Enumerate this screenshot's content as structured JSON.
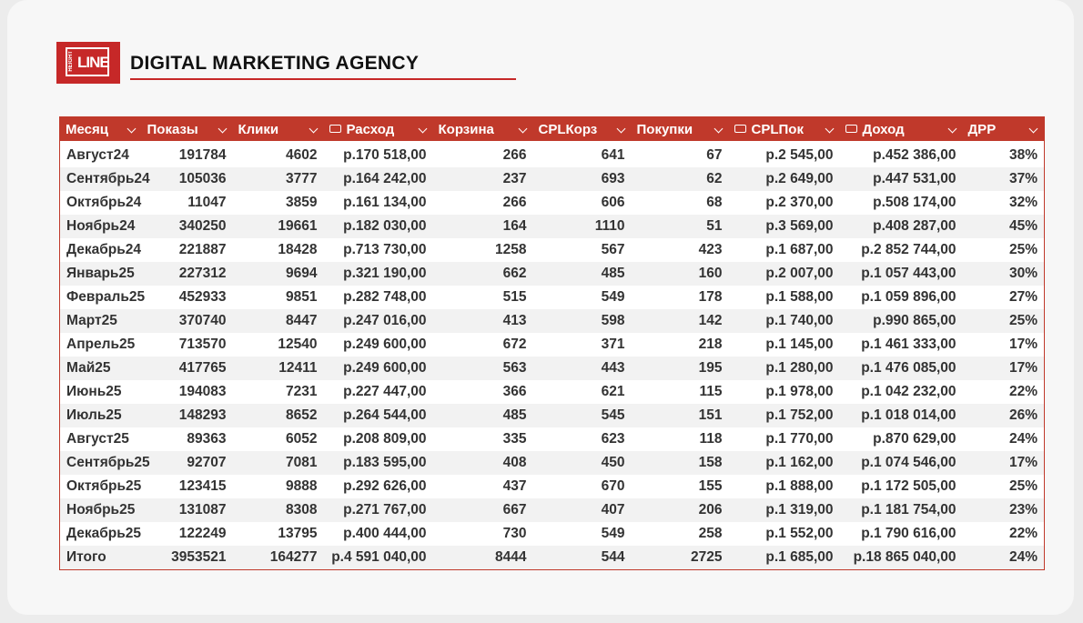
{
  "header": {
    "logo_top": "HEIGHT",
    "logo_main": "LINE",
    "title": "DIGITAL MARKETING AGENCY"
  },
  "table": {
    "columns": [
      "Месяц",
      "Показы",
      "Клики",
      "Расход",
      "Корзина",
      "CPLКорз",
      "Покупки",
      "CPLПок",
      "Доход",
      "ДРР"
    ],
    "rows": [
      [
        "Август24",
        "191784",
        "4602",
        "р.170 518,00",
        "266",
        "641",
        "67",
        "р.2 545,00",
        "р.452 386,00",
        "38%"
      ],
      [
        "Сентябрь24",
        "105036",
        "3777",
        "р.164 242,00",
        "237",
        "693",
        "62",
        "р.2 649,00",
        "р.447 531,00",
        "37%"
      ],
      [
        "Октябрь24",
        "11047",
        "3859",
        "р.161 134,00",
        "266",
        "606",
        "68",
        "р.2 370,00",
        "р.508 174,00",
        "32%"
      ],
      [
        "Ноябрь24",
        "340250",
        "19661",
        "р.182 030,00",
        "164",
        "1110",
        "51",
        "р.3 569,00",
        "р.408 287,00",
        "45%"
      ],
      [
        "Декабрь24",
        "221887",
        "18428",
        "р.713 730,00",
        "1258",
        "567",
        "423",
        "р.1 687,00",
        "р.2 852 744,00",
        "25%"
      ],
      [
        "Январь25",
        "227312",
        "9694",
        "р.321 190,00",
        "662",
        "485",
        "160",
        "р.2 007,00",
        "р.1 057 443,00",
        "30%"
      ],
      [
        "Февраль25",
        "452933",
        "9851",
        "р.282 748,00",
        "515",
        "549",
        "178",
        "р.1 588,00",
        "р.1 059 896,00",
        "27%"
      ],
      [
        "Март25",
        "370740",
        "8447",
        "р.247 016,00",
        "413",
        "598",
        "142",
        "р.1 740,00",
        "р.990 865,00",
        "25%"
      ],
      [
        "Апрель25",
        "713570",
        "12540",
        "р.249 600,00",
        "672",
        "371",
        "218",
        "р.1 145,00",
        "р.1 461 333,00",
        "17%"
      ],
      [
        "Май25",
        "417765",
        "12411",
        "р.249 600,00",
        "563",
        "443",
        "195",
        "р.1 280,00",
        "р.1 476 085,00",
        "17%"
      ],
      [
        "Июнь25",
        "194083",
        "7231",
        "р.227 447,00",
        "366",
        "621",
        "115",
        "р.1 978,00",
        "р.1 042 232,00",
        "22%"
      ],
      [
        "Июль25",
        "148293",
        "8652",
        "р.264 544,00",
        "485",
        "545",
        "151",
        "р.1 752,00",
        "р.1 018 014,00",
        "26%"
      ],
      [
        "Август25",
        "89363",
        "6052",
        "р.208 809,00",
        "335",
        "623",
        "118",
        "р.1 770,00",
        "р.870 629,00",
        "24%"
      ],
      [
        "Сентябрь25",
        "92707",
        "7081",
        "р.183 595,00",
        "408",
        "450",
        "158",
        "р.1 162,00",
        "р.1 074 546,00",
        "17%"
      ],
      [
        "Октябрь25",
        "123415",
        "9888",
        "р.292 626,00",
        "437",
        "670",
        "155",
        "р.1 888,00",
        "р.1 172 505,00",
        "25%"
      ],
      [
        "Ноябрь25",
        "131087",
        "8308",
        "р.271 767,00",
        "667",
        "407",
        "206",
        "р.1 319,00",
        "р.1 181 754,00",
        "23%"
      ],
      [
        "Декабрь25",
        "122249",
        "13795",
        "р.400 444,00",
        "730",
        "549",
        "258",
        "р.1 552,00",
        "р.1 790 616,00",
        "22%"
      ],
      [
        "Итого",
        "3953521",
        "164277",
        "р.4 591 040,00",
        "8444",
        "544",
        "2725",
        "р.1 685,00",
        "р.18 865 040,00",
        "24%"
      ]
    ]
  }
}
